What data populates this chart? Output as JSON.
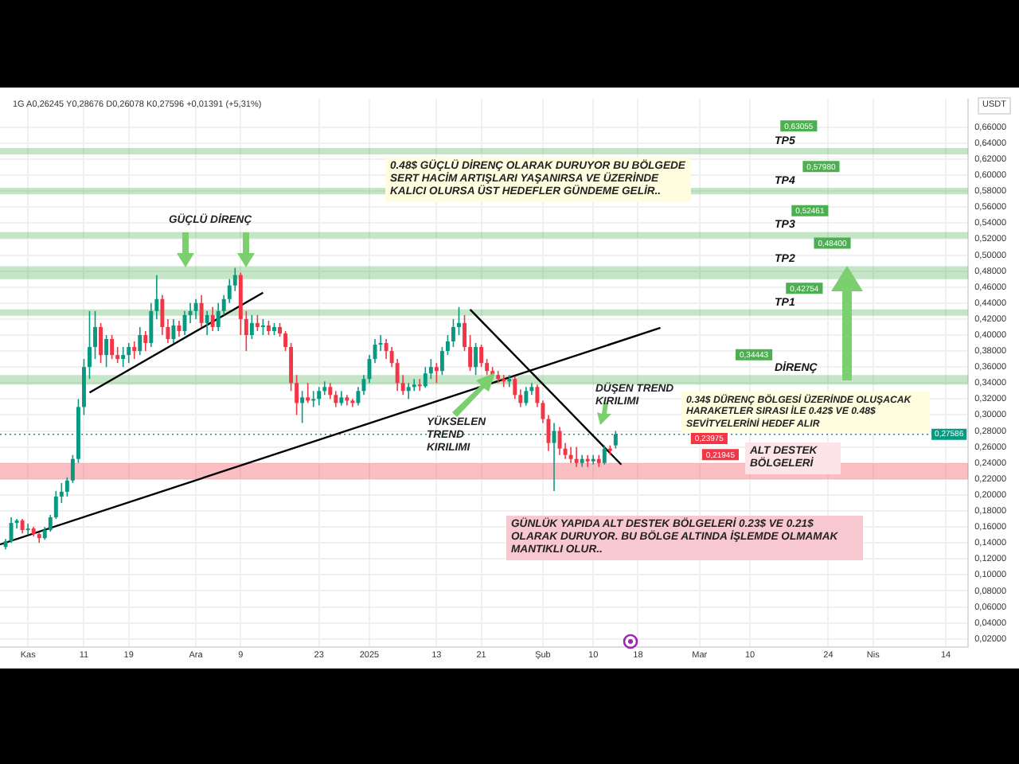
{
  "chart_data": {
    "type": "candlestick",
    "ylabel": "USDT",
    "x": [
      "2024-10-28",
      "2024-10-29",
      "2024-10-30",
      "2024-10-31",
      "2024-11-01",
      "2024-11-02",
      "2024-11-03",
      "2024-11-04",
      "2024-11-05",
      "2024-11-06",
      "2024-11-07",
      "2024-11-08",
      "2024-11-09",
      "2024-11-10",
      "2024-11-11",
      "2024-11-12",
      "2024-11-13",
      "2024-11-14",
      "2024-11-15",
      "2024-11-16",
      "2024-11-17",
      "2024-11-18",
      "2024-11-19",
      "2024-11-20",
      "2024-11-21",
      "2024-11-22",
      "2024-11-23",
      "2024-11-24",
      "2024-11-25",
      "2024-11-26",
      "2024-11-27",
      "2024-11-28",
      "2024-11-29",
      "2024-11-30",
      "2024-12-01",
      "2024-12-02",
      "2024-12-03",
      "2024-12-04",
      "2024-12-05",
      "2024-12-06",
      "2024-12-07",
      "2024-12-08",
      "2024-12-09",
      "2024-12-10",
      "2024-12-11",
      "2024-12-12",
      "2024-12-13",
      "2024-12-14",
      "2024-12-15",
      "2024-12-16",
      "2024-12-17",
      "2024-12-18",
      "2024-12-19",
      "2024-12-20",
      "2024-12-21",
      "2024-12-22",
      "2024-12-23",
      "2024-12-24",
      "2024-12-25",
      "2024-12-26",
      "2024-12-27",
      "2024-12-28",
      "2024-12-29",
      "2024-12-30",
      "2024-12-31",
      "2025-01-01",
      "2025-01-02",
      "2025-01-03",
      "2025-01-04",
      "2025-01-05",
      "2025-01-06",
      "2025-01-07",
      "2025-01-08",
      "2025-01-09",
      "2025-01-10",
      "2025-01-11",
      "2025-01-12",
      "2025-01-13",
      "2025-01-14",
      "2025-01-15",
      "2025-01-16",
      "2025-01-17",
      "2025-01-18",
      "2025-01-19",
      "2025-01-20",
      "2025-01-21",
      "2025-01-22",
      "2025-01-23",
      "2025-01-24",
      "2025-01-25",
      "2025-01-26",
      "2025-01-27",
      "2025-01-28",
      "2025-01-29",
      "2025-01-30",
      "2025-01-31",
      "2025-02-01",
      "2025-02-02",
      "2025-02-03",
      "2025-02-04",
      "2025-02-05",
      "2025-02-06",
      "2025-02-07",
      "2025-02-08",
      "2025-02-09",
      "2025-02-10",
      "2025-02-11",
      "2025-02-12",
      "2025-02-13",
      "2025-02-14"
    ],
    "ohlc": [
      [
        0.135,
        0.145,
        0.132,
        0.142
      ],
      [
        0.142,
        0.172,
        0.14,
        0.165
      ],
      [
        0.165,
        0.17,
        0.158,
        0.168
      ],
      [
        0.168,
        0.17,
        0.152,
        0.156
      ],
      [
        0.156,
        0.164,
        0.15,
        0.158
      ],
      [
        0.158,
        0.16,
        0.148,
        0.151
      ],
      [
        0.151,
        0.153,
        0.14,
        0.146
      ],
      [
        0.146,
        0.16,
        0.144,
        0.156
      ],
      [
        0.156,
        0.175,
        0.154,
        0.172
      ],
      [
        0.172,
        0.205,
        0.17,
        0.198
      ],
      [
        0.198,
        0.215,
        0.19,
        0.204
      ],
      [
        0.204,
        0.222,
        0.198,
        0.218
      ],
      [
        0.218,
        0.25,
        0.215,
        0.245
      ],
      [
        0.245,
        0.32,
        0.24,
        0.31
      ],
      [
        0.31,
        0.37,
        0.3,
        0.36
      ],
      [
        0.36,
        0.43,
        0.345,
        0.385
      ],
      [
        0.385,
        0.43,
        0.37,
        0.41
      ],
      [
        0.41,
        0.415,
        0.365,
        0.375
      ],
      [
        0.375,
        0.4,
        0.36,
        0.395
      ],
      [
        0.395,
        0.4,
        0.37,
        0.375
      ],
      [
        0.375,
        0.385,
        0.365,
        0.37
      ],
      [
        0.37,
        0.385,
        0.36,
        0.375
      ],
      [
        0.375,
        0.39,
        0.365,
        0.385
      ],
      [
        0.385,
        0.392,
        0.37,
        0.38
      ],
      [
        0.38,
        0.41,
        0.375,
        0.4
      ],
      [
        0.4,
        0.405,
        0.38,
        0.39
      ],
      [
        0.39,
        0.44,
        0.385,
        0.43
      ],
      [
        0.43,
        0.475,
        0.42,
        0.445
      ],
      [
        0.445,
        0.45,
        0.4,
        0.41
      ],
      [
        0.41,
        0.42,
        0.39,
        0.395
      ],
      [
        0.395,
        0.42,
        0.39,
        0.412
      ],
      [
        0.412,
        0.418,
        0.398,
        0.405
      ],
      [
        0.405,
        0.43,
        0.4,
        0.425
      ],
      [
        0.425,
        0.44,
        0.415,
        0.43
      ],
      [
        0.43,
        0.445,
        0.42,
        0.44
      ],
      [
        0.44,
        0.45,
        0.41,
        0.415
      ],
      [
        0.415,
        0.43,
        0.4,
        0.425
      ],
      [
        0.425,
        0.435,
        0.405,
        0.41
      ],
      [
        0.41,
        0.44,
        0.405,
        0.43
      ],
      [
        0.43,
        0.45,
        0.425,
        0.445
      ],
      [
        0.445,
        0.47,
        0.44,
        0.462
      ],
      [
        0.462,
        0.484,
        0.455,
        0.475
      ],
      [
        0.475,
        0.478,
        0.4,
        0.42
      ],
      [
        0.42,
        0.43,
        0.38,
        0.4
      ],
      [
        0.4,
        0.425,
        0.395,
        0.415
      ],
      [
        0.415,
        0.425,
        0.405,
        0.41
      ],
      [
        0.41,
        0.42,
        0.4,
        0.412
      ],
      [
        0.412,
        0.418,
        0.4,
        0.405
      ],
      [
        0.405,
        0.415,
        0.4,
        0.41
      ],
      [
        0.41,
        0.415,
        0.398,
        0.402
      ],
      [
        0.402,
        0.405,
        0.38,
        0.385
      ],
      [
        0.385,
        0.39,
        0.33,
        0.34
      ],
      [
        0.34,
        0.35,
        0.3,
        0.315
      ],
      [
        0.315,
        0.33,
        0.29,
        0.322
      ],
      [
        0.322,
        0.34,
        0.315,
        0.318
      ],
      [
        0.318,
        0.33,
        0.31,
        0.32
      ],
      [
        0.32,
        0.335,
        0.312,
        0.33
      ],
      [
        0.33,
        0.342,
        0.325,
        0.335
      ],
      [
        0.335,
        0.34,
        0.32,
        0.325
      ],
      [
        0.325,
        0.33,
        0.31,
        0.315
      ],
      [
        0.315,
        0.33,
        0.312,
        0.322
      ],
      [
        0.322,
        0.325,
        0.312,
        0.318
      ],
      [
        0.318,
        0.32,
        0.31,
        0.315
      ],
      [
        0.315,
        0.335,
        0.312,
        0.33
      ],
      [
        0.33,
        0.35,
        0.325,
        0.345
      ],
      [
        0.345,
        0.375,
        0.34,
        0.37
      ],
      [
        0.37,
        0.395,
        0.365,
        0.388
      ],
      [
        0.388,
        0.4,
        0.38,
        0.39
      ],
      [
        0.39,
        0.395,
        0.37,
        0.38
      ],
      [
        0.38,
        0.385,
        0.36,
        0.365
      ],
      [
        0.365,
        0.37,
        0.33,
        0.34
      ],
      [
        0.34,
        0.35,
        0.325,
        0.33
      ],
      [
        0.33,
        0.34,
        0.32,
        0.335
      ],
      [
        0.335,
        0.345,
        0.33,
        0.338
      ],
      [
        0.338,
        0.345,
        0.33,
        0.336
      ],
      [
        0.336,
        0.36,
        0.334,
        0.352
      ],
      [
        0.352,
        0.37,
        0.345,
        0.36
      ],
      [
        0.36,
        0.365,
        0.34,
        0.355
      ],
      [
        0.355,
        0.385,
        0.35,
        0.38
      ],
      [
        0.38,
        0.4,
        0.375,
        0.392
      ],
      [
        0.392,
        0.42,
        0.385,
        0.41
      ],
      [
        0.41,
        0.435,
        0.4,
        0.415
      ],
      [
        0.415,
        0.425,
        0.38,
        0.385
      ],
      [
        0.385,
        0.4,
        0.355,
        0.36
      ],
      [
        0.36,
        0.39,
        0.35,
        0.385
      ],
      [
        0.385,
        0.388,
        0.36,
        0.365
      ],
      [
        0.365,
        0.37,
        0.35,
        0.355
      ],
      [
        0.355,
        0.36,
        0.345,
        0.35
      ],
      [
        0.35,
        0.355,
        0.34,
        0.345
      ],
      [
        0.345,
        0.35,
        0.335,
        0.342
      ],
      [
        0.342,
        0.35,
        0.335,
        0.345
      ],
      [
        0.345,
        0.348,
        0.32,
        0.325
      ],
      [
        0.325,
        0.332,
        0.31,
        0.315
      ],
      [
        0.315,
        0.335,
        0.312,
        0.33
      ],
      [
        0.33,
        0.34,
        0.325,
        0.335
      ],
      [
        0.335,
        0.338,
        0.31,
        0.315
      ],
      [
        0.315,
        0.318,
        0.29,
        0.295
      ],
      [
        0.295,
        0.3,
        0.255,
        0.265
      ],
      [
        0.265,
        0.29,
        0.205,
        0.28
      ],
      [
        0.28,
        0.285,
        0.25,
        0.258
      ],
      [
        0.258,
        0.265,
        0.245,
        0.25
      ],
      [
        0.25,
        0.26,
        0.24,
        0.245
      ],
      [
        0.245,
        0.26,
        0.235,
        0.24
      ],
      [
        0.24,
        0.25,
        0.235,
        0.245
      ],
      [
        0.245,
        0.25,
        0.235,
        0.242
      ],
      [
        0.242,
        0.25,
        0.238,
        0.245
      ],
      [
        0.245,
        0.25,
        0.235,
        0.24
      ],
      [
        0.24,
        0.262,
        0.238,
        0.258
      ],
      [
        0.258,
        0.262,
        0.25,
        0.255
      ],
      [
        0.262,
        0.28,
        0.258,
        0.276
      ]
    ],
    "colors": [
      "#089981",
      "#089981",
      "#089981",
      "#f23645",
      "#089981",
      "#f23645",
      "#f23645",
      "#089981",
      "#089981",
      "#089981",
      "#089981",
      "#089981",
      "#089981",
      "#089981",
      "#089981",
      "#089981",
      "#089981",
      "#f23645",
      "#089981",
      "#f23645",
      "#f23645",
      "#089981",
      "#089981",
      "#f23645",
      "#089981",
      "#f23645",
      "#089981",
      "#089981",
      "#f23645",
      "#f23645",
      "#089981",
      "#f23645",
      "#089981",
      "#089981",
      "#089981",
      "#f23645",
      "#089981",
      "#f23645",
      "#089981",
      "#089981",
      "#089981",
      "#089981",
      "#f23645",
      "#f23645",
      "#089981",
      "#f23645",
      "#089981",
      "#f23645",
      "#089981",
      "#f23645",
      "#f23645",
      "#f23645",
      "#f23645",
      "#089981",
      "#f23645",
      "#089981",
      "#089981",
      "#089981",
      "#f23645",
      "#f23645",
      "#089981",
      "#f23645",
      "#f23645",
      "#089981",
      "#089981",
      "#089981",
      "#089981",
      "#089981",
      "#f23645",
      "#f23645",
      "#f23645",
      "#f23645",
      "#089981",
      "#089981",
      "#f23645",
      "#089981",
      "#089981",
      "#f23645",
      "#089981",
      "#089981",
      "#089981",
      "#089981",
      "#f23645",
      "#f23645",
      "#089981",
      "#f23645",
      "#f23645",
      "#f23645",
      "#f23645",
      "#f23645",
      "#089981",
      "#f23645",
      "#f23645",
      "#089981",
      "#089981",
      "#f23645",
      "#f23645",
      "#f23645",
      "#089981",
      "#f23645",
      "#f23645",
      "#f23645",
      "#f23645",
      "#089981",
      "#f23645",
      "#089981",
      "#f23645",
      "#089981",
      "#f23645",
      "#089981"
    ],
    "series": [
      {
        "type": "line",
        "color": "#000000",
        "x": [
          "2024-10-27",
          "2025-02-22"
        ],
        "values": [
          0.138,
          0.409
        ]
      },
      {
        "type": "line",
        "color": "#000000",
        "x": [
          "2024-11-12",
          "2024-12-13"
        ],
        "values": [
          0.328,
          0.453
        ]
      },
      {
        "type": "line",
        "color": "#000000",
        "x": [
          "2025-01-19",
          "2025-02-15"
        ],
        "values": [
          0.432,
          0.238
        ]
      }
    ],
    "marker": "none",
    "xlim": [
      "2024-10-27",
      "2025-04-18"
    ],
    "xticks": [
      {
        "value": "2024-11-01",
        "label": "Kas"
      },
      {
        "value": "2024-11-11",
        "label": "11"
      },
      {
        "value": "2024-11-19",
        "label": "19"
      },
      {
        "value": "2024-12-01",
        "label": "Ara"
      },
      {
        "value": "2024-12-09",
        "label": "9"
      },
      {
        "value": "2024-12-23",
        "label": "23"
      },
      {
        "value": "2025-01-01",
        "label": "2025"
      },
      {
        "value": "2025-01-13",
        "label": "13"
      },
      {
        "value": "2025-01-21",
        "label": "21"
      },
      {
        "value": "2025-02-01",
        "label": "Şub"
      },
      {
        "value": "2025-02-10",
        "label": "10"
      },
      {
        "value": "2025-02-18",
        "label": "18"
      },
      {
        "value": "2025-03-01",
        "label": "Mar"
      },
      {
        "value": "2025-03-10",
        "label": "10"
      },
      {
        "value": "2025-03-24",
        "label": "24"
      },
      {
        "value": "2025-04-01",
        "label": "Nis"
      },
      {
        "value": "2025-04-14",
        "label": "14"
      }
    ],
    "ylim": [
      0.01,
      0.695
    ],
    "yticks": [
      {
        "value": 0.02,
        "label": "0,02000"
      },
      {
        "value": 0.04,
        "label": "0,04000"
      },
      {
        "value": 0.06,
        "label": "0,06000"
      },
      {
        "value": 0.08,
        "label": "0,08000"
      },
      {
        "value": 0.1,
        "label": "0,10000"
      },
      {
        "value": 0.12,
        "label": "0,12000"
      },
      {
        "value": 0.14,
        "label": "0,14000"
      },
      {
        "value": 0.16,
        "label": "0,16000"
      },
      {
        "value": 0.18,
        "label": "0,18000"
      },
      {
        "value": 0.2,
        "label": "0,20000"
      },
      {
        "value": 0.22,
        "label": "0,22000"
      },
      {
        "value": 0.24,
        "label": "0,24000"
      },
      {
        "value": 0.26,
        "label": "0,26000"
      },
      {
        "value": 0.28,
        "label": "0,28000"
      },
      {
        "value": 0.3,
        "label": "0,30000"
      },
      {
        "value": 0.32,
        "label": "0,32000"
      },
      {
        "value": 0.34,
        "label": "0,34000"
      },
      {
        "value": 0.36,
        "label": "0,36000"
      },
      {
        "value": 0.38,
        "label": "0,38000"
      },
      {
        "value": 0.4,
        "label": "0,40000"
      },
      {
        "value": 0.42,
        "label": "0,42000"
      },
      {
        "value": 0.44,
        "label": "0,44000"
      },
      {
        "value": 0.46,
        "label": "0,46000"
      },
      {
        "value": 0.48,
        "label": "0,48000"
      },
      {
        "value": 0.5,
        "label": "0,50000"
      },
      {
        "value": 0.52,
        "label": "0,52000"
      },
      {
        "value": 0.54,
        "label": "0,54000"
      },
      {
        "value": 0.56,
        "label": "0,56000"
      },
      {
        "value": 0.58,
        "label": "0,58000"
      },
      {
        "value": 0.6,
        "label": "0,60000"
      },
      {
        "value": 0.62,
        "label": "0,62000"
      },
      {
        "value": 0.64,
        "label": "0,64000"
      },
      {
        "value": 0.66,
        "label": "0,66000"
      }
    ],
    "grid": true,
    "bands": [
      {
        "axis": "y",
        "from": 0.626,
        "to": 0.634,
        "label": "TP5",
        "color": "#4caf50"
      },
      {
        "axis": "y",
        "from": 0.576,
        "to": 0.584,
        "label": "TP4",
        "color": "#4caf50"
      },
      {
        "axis": "y",
        "from": 0.521,
        "to": 0.529,
        "label": "TP3",
        "color": "#4caf50"
      },
      {
        "axis": "y",
        "from": 0.47,
        "to": 0.486,
        "label": "TP2",
        "color": "#4caf50"
      },
      {
        "axis": "y",
        "from": 0.424,
        "to": 0.432,
        "label": "TP1",
        "color": "#4caf50"
      },
      {
        "axis": "y",
        "from": 0.338,
        "to": 0.35,
        "label": "DİRENÇ",
        "color": "#4caf50"
      },
      {
        "axis": "y",
        "from": 0.21945,
        "to": 0.23975,
        "color": "#f23645"
      }
    ],
    "ref_lines": [
      {
        "axis": "y",
        "value": 0.27586,
        "label": "0,27586",
        "color": "#089981",
        "line_style": "dotted"
      }
    ],
    "annotations": [
      "1G  A0,26245 Y0,28676 D0,26078 K0,27596 +0,01391 (+5,31%)",
      "0.48$ GÜÇLÜ DİRENÇ OLARAK DURUYOR BU BÖLGEDE SERT HACİM ARTIŞLARI YAŞANIRSA VE ÜZERİNDE KALICI OLURSA ÜST HEDEFLER GÜNDEME GELİR..",
      "GÜÇLÜ DİRENÇ",
      "YÜKSELEN TREND KIRILIMI",
      "DÜŞEN TREND KIRILIMI",
      "0.34$ DÜRENÇ BÖLGESİ ÜZERİNDE OLUŞACAK HARAKETLER SIRASI İLE 0.42$ VE 0.48$ SEVİTYELERİNİ HEDEF  ALIR",
      "ALT DESTEK BÖLGELERİ",
      "GÜNLÜK YAPIDA ALT DESTEK BÖLGELERİ 0.23$ VE 0.21$ OLARAK DURUYOR. BU BÖLGE ALTINDA İŞLEMDE OLMAMAK MANTIKLI OLUR..",
      {
        "text": "0,63055",
        "x": "2025-03-16",
        "y": 0.63055
      },
      {
        "text": "0,57980",
        "x": "2025-03-20",
        "y": 0.5798
      },
      {
        "text": "0,52461",
        "x": "2025-03-18",
        "y": 0.52461
      },
      {
        "text": "0,48400",
        "x": "2025-03-22",
        "y": 0.484
      },
      {
        "text": "0,42754",
        "x": "2025-03-17",
        "y": 0.42754
      },
      {
        "text": "0,34443",
        "x": "2025-03-08",
        "y": 0.34443
      },
      {
        "text": "0,23975",
        "x": "2025-02-28",
        "y": 0.23975
      },
      {
        "text": "0,21945",
        "x": "2025-03-02",
        "y": 0.21945
      }
    ]
  }
}
